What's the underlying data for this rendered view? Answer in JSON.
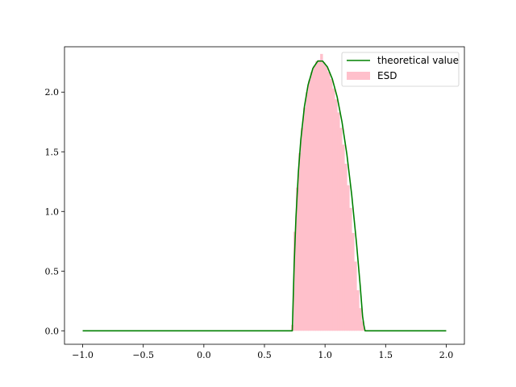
{
  "chart_data": {
    "type": "line",
    "title": "",
    "xlabel": "",
    "ylabel": "",
    "xlim": [
      -1.15,
      2.15
    ],
    "ylim": [
      -0.113,
      2.38
    ],
    "xticks": [
      -1.0,
      -0.5,
      0.0,
      0.5,
      1.0,
      1.5,
      2.0
    ],
    "xtick_labels": [
      "−1.0",
      "−0.5",
      "0.0",
      "0.5",
      "1.0",
      "1.5",
      "2.0"
    ],
    "yticks": [
      0.0,
      0.5,
      1.0,
      1.5,
      2.0
    ],
    "ytick_labels": [
      "0.0",
      "0.5",
      "1.0",
      "1.5",
      "2.0"
    ],
    "grid": false,
    "legend_position": "upper right",
    "series": [
      {
        "name": "theoretical value",
        "kind": "line",
        "color": "#008000",
        "x": [
          -1.0,
          0.0,
          0.5,
          0.73,
          0.745,
          0.76,
          0.78,
          0.8,
          0.83,
          0.86,
          0.9,
          0.94,
          0.98,
          1.02,
          1.06,
          1.1,
          1.14,
          1.18,
          1.22,
          1.26,
          1.29,
          1.31,
          1.32,
          1.33,
          1.34,
          1.5,
          2.0
        ],
        "y": [
          0.0,
          0.0,
          0.0,
          0.0,
          0.55,
          0.95,
          1.33,
          1.6,
          1.88,
          2.06,
          2.2,
          2.26,
          2.26,
          2.21,
          2.11,
          1.96,
          1.75,
          1.48,
          1.14,
          0.73,
          0.38,
          0.12,
          0.05,
          0.0,
          0.0,
          0.0,
          0.0
        ]
      },
      {
        "name": "ESD",
        "kind": "histogram",
        "color": "#FFC0CB",
        "bin_width": 0.02,
        "bin_centers": [
          0.73,
          0.75,
          0.77,
          0.79,
          0.81,
          0.83,
          0.85,
          0.87,
          0.89,
          0.91,
          0.93,
          0.95,
          0.97,
          0.99,
          1.01,
          1.03,
          1.05,
          1.07,
          1.09,
          1.11,
          1.13,
          1.15,
          1.17,
          1.19,
          1.21,
          1.23,
          1.25,
          1.27,
          1.29,
          1.31,
          1.33
        ],
        "values": [
          0.05,
          0.83,
          1.2,
          1.49,
          1.7,
          1.87,
          2.0,
          2.1,
          2.17,
          2.22,
          2.26,
          2.27,
          2.32,
          2.25,
          2.22,
          2.17,
          2.11,
          2.03,
          1.94,
          1.83,
          1.7,
          1.56,
          1.4,
          1.22,
          1.03,
          0.82,
          0.58,
          0.34,
          0.19,
          0.08,
          0.0
        ]
      }
    ]
  }
}
